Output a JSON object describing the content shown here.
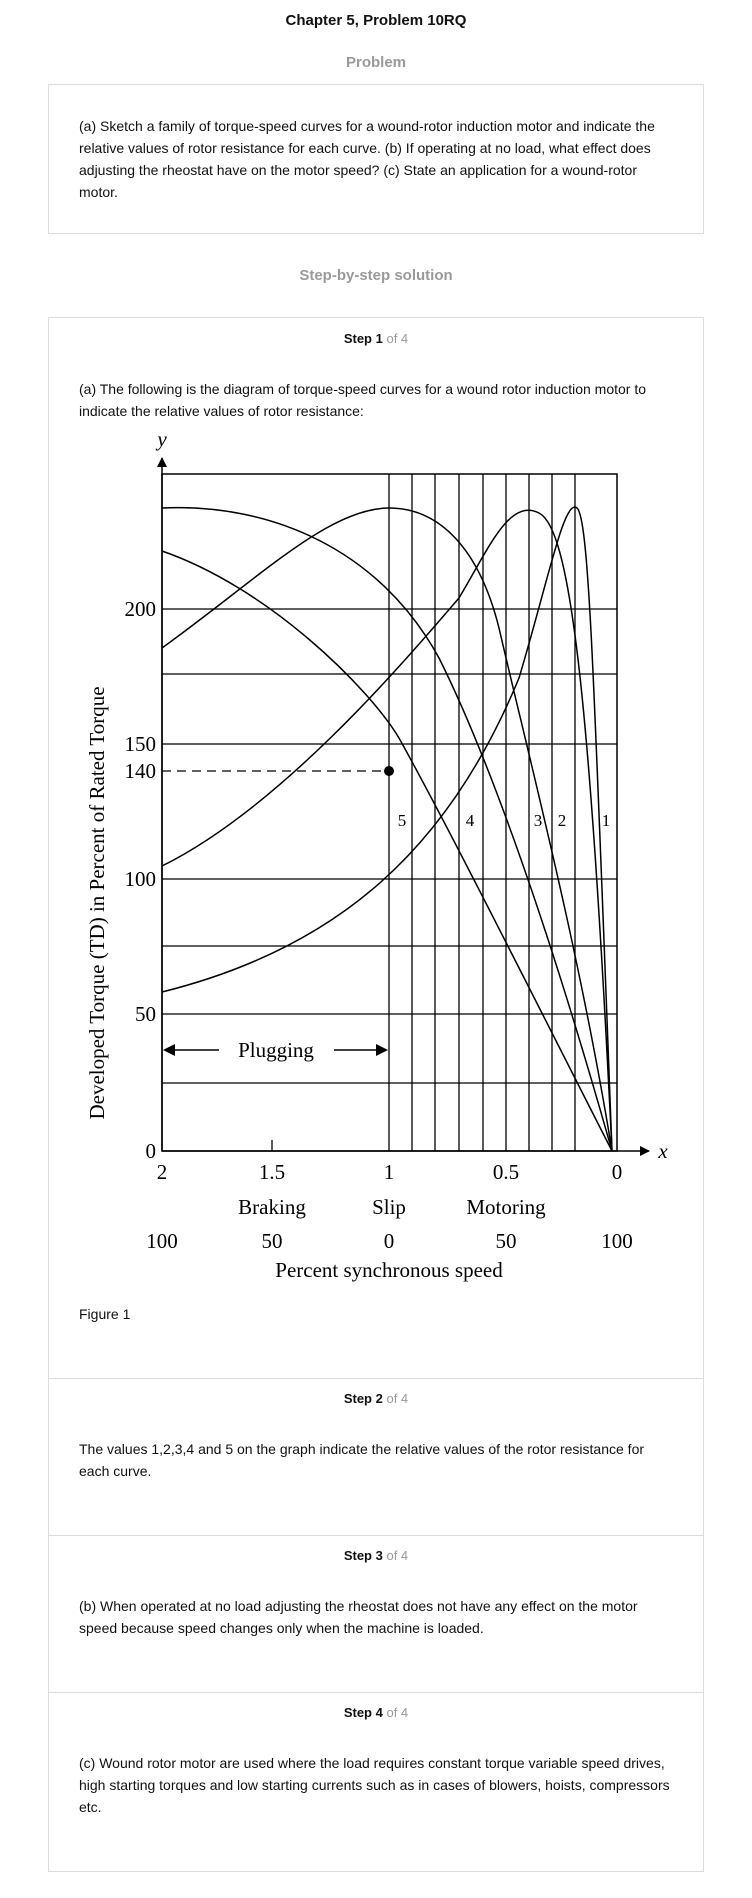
{
  "header": {
    "title": "Chapter 5, Problem 10RQ",
    "problem_heading": "Problem",
    "solution_heading": "Step-by-step solution"
  },
  "problem": {
    "text": "(a) Sketch a family of torque-speed curves for a wound-rotor induction motor and indicate the relative values of rotor resistance for each curve. (b) If operating at no load, what effect does adjusting the rheostat have on the motor speed? (c) State an application for a wound-rotor motor."
  },
  "steps": [
    {
      "label": "Step 1",
      "of": "of 4",
      "text": "(a) The following is the diagram of torque-speed curves for a wound rotor induction motor to indicate the relative values of rotor resistance:"
    },
    {
      "label": "Step 2",
      "of": "of 4",
      "text": "The values 1,2,3,4 and 5 on the graph indicate the relative values of the rotor resistance for each curve."
    },
    {
      "label": "Step 3",
      "of": "of 4",
      "text": "(b) When operated at no load adjusting the rheostat does not have any effect on the motor speed because speed changes only when the machine is loaded."
    },
    {
      "label": "Step 4",
      "of": "of 4",
      "text": "(c) Wound rotor motor are used where the load requires constant torque variable speed drives, high starting torques and low starting currents such as in cases of blowers, hoists, compressors etc."
    }
  ],
  "figure": {
    "caption": "Figure 1",
    "y_axis_letter": "y",
    "x_axis_letter": "x",
    "ylabel": "Developed Torque (TD) in Percent of Rated Torque",
    "y_ticks": [
      "0",
      "50",
      "100",
      "140",
      "150",
      "200"
    ],
    "slip_ticks": [
      "2",
      "1.5",
      "1",
      "0.5",
      "0"
    ],
    "region_labels": [
      "Braking",
      "Slip",
      "Motoring"
    ],
    "speed_ticks": [
      "100",
      "50",
      "0",
      "50",
      "100"
    ],
    "xlabel": "Percent synchronous speed",
    "plugging_label": "Plugging",
    "curve_labels": [
      "5",
      "4",
      "3",
      "2",
      "1"
    ],
    "marked_point": {
      "slip": 1,
      "torque": 140
    }
  }
}
